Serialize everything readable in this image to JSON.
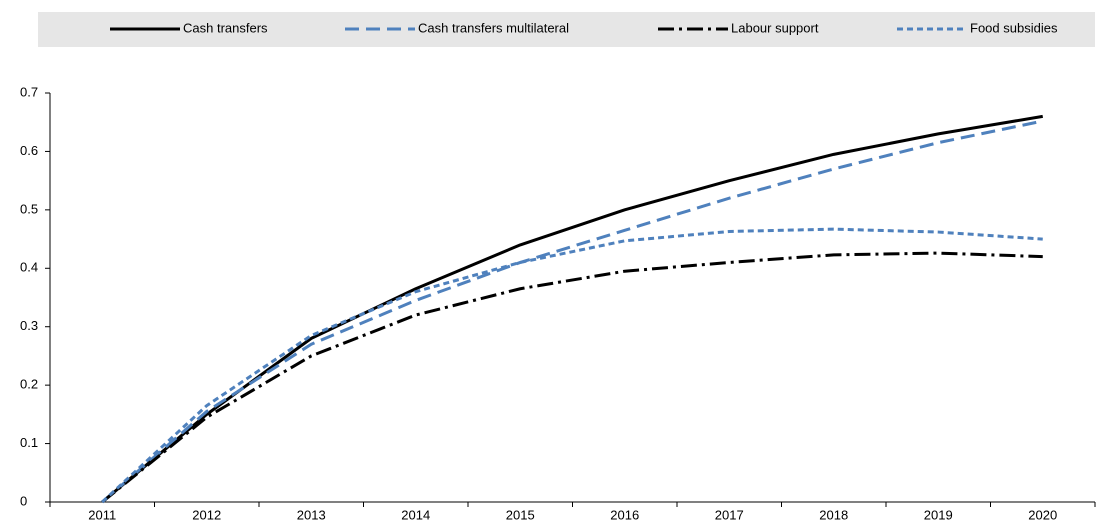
{
  "chart_data": {
    "type": "line",
    "categories": [
      "2011",
      "2012",
      "2013",
      "2014",
      "2015",
      "2016",
      "2017",
      "2018",
      "2019",
      "2020"
    ],
    "series": [
      {
        "name": "Cash transfers",
        "color": "#000000",
        "style": "solid",
        "values": [
          0,
          0.15,
          0.28,
          0.365,
          0.44,
          0.5,
          0.55,
          0.595,
          0.63,
          0.66
        ]
      },
      {
        "name": "Cash transfers multilateral",
        "color": "#4f81bd",
        "style": "long-dash",
        "values": [
          0,
          0.155,
          0.27,
          0.345,
          0.41,
          0.465,
          0.52,
          0.57,
          0.615,
          0.652
        ]
      },
      {
        "name": "Labour support",
        "color": "#000000",
        "style": "dash-dot",
        "values": [
          0,
          0.145,
          0.25,
          0.32,
          0.365,
          0.395,
          0.41,
          0.423,
          0.426,
          0.42
        ]
      },
      {
        "name": "Food subsidies",
        "color": "#4f81bd",
        "style": "short-dash",
        "values": [
          0,
          0.165,
          0.285,
          0.36,
          0.41,
          0.447,
          0.463,
          0.467,
          0.462,
          0.45
        ]
      }
    ],
    "ylim": [
      0,
      0.7
    ],
    "yticks": [
      0,
      0.1,
      0.2,
      0.3,
      0.4,
      0.5,
      0.6,
      0.7
    ],
    "grid": false,
    "legend": "top"
  }
}
